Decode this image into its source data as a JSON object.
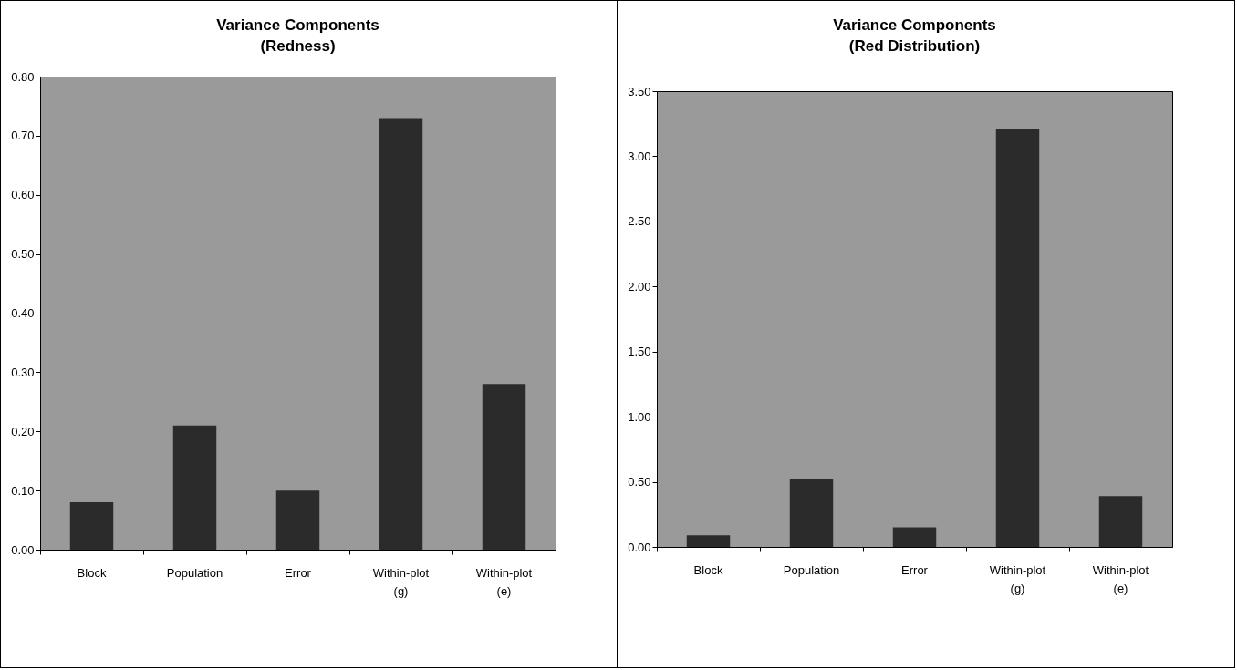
{
  "chart_data": [
    {
      "type": "bar",
      "title": "Variance Components",
      "subtitle": "(Redness)",
      "categories": [
        "Block",
        "Population",
        "Error",
        "Within-plot (g)",
        "Within-plot (e)"
      ],
      "values": [
        0.08,
        0.21,
        0.1,
        0.73,
        0.28
      ],
      "color": "#2b2b2b",
      "ylim": [
        0,
        0.8
      ],
      "yticks": [
        {
          "value": 0,
          "label": "0.00"
        },
        {
          "value": 0.1,
          "label": "0.10"
        },
        {
          "value": 0.2,
          "label": "0.20"
        },
        {
          "value": 0.3,
          "label": "0.30"
        },
        {
          "value": 0.4,
          "label": "0.40"
        },
        {
          "value": 0.5,
          "label": "0.50"
        },
        {
          "value": 0.6,
          "label": "0.60"
        },
        {
          "value": 0.7,
          "label": "0.70"
        },
        {
          "value": 0.8,
          "label": "0.80"
        }
      ],
      "grid": false
    },
    {
      "type": "bar",
      "title": "Variance Components",
      "subtitle": "(Red Distribution)",
      "categories": [
        "Block",
        "Population",
        "Error",
        "Within-plot (g)",
        "Within-plot (e)"
      ],
      "values": [
        0.09,
        0.52,
        0.15,
        3.21,
        0.39
      ],
      "color": "#2b2b2b",
      "ylim": [
        0,
        3.5
      ],
      "yticks": [
        {
          "value": 0,
          "label": "0.00"
        },
        {
          "value": 0.5,
          "label": "0.50"
        },
        {
          "value": 1,
          "label": "1.00"
        },
        {
          "value": 1.5,
          "label": "1.50"
        },
        {
          "value": 2,
          "label": "2.00"
        },
        {
          "value": 2.5,
          "label": "2.50"
        },
        {
          "value": 3,
          "label": "3.00"
        },
        {
          "value": 3.5,
          "label": "3.50"
        }
      ],
      "grid": false
    }
  ]
}
